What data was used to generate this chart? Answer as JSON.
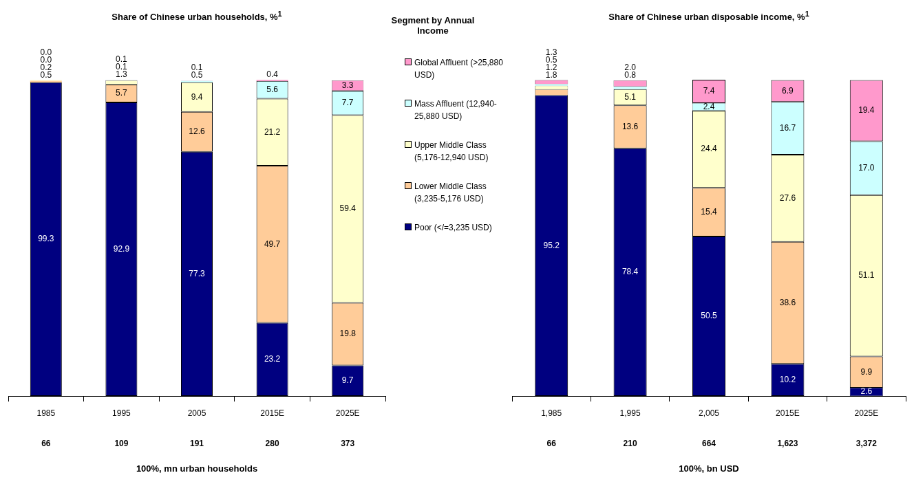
{
  "chart_data": [
    {
      "type": "bar",
      "stacked": true,
      "title": "Share of Chinese urban households, %$^{1}$",
      "xlabel": "100%, mn urban households",
      "legend_title": "Segment by Annual Income",
      "legend": "right",
      "tick_labels": "x",
      "categories": [
        "1985",
        "1995",
        "2005",
        "2015E",
        "2025E"
      ],
      "annotations": [
        "66",
        "109",
        "191",
        "280",
        "373"
      ],
      "series": [
        {
          "name": "Poor (</=3,235 USD)",
          "color": "#000080",
          "values": [
            99.3,
            92.9,
            77.3,
            23.2,
            9.7
          ],
          "value_labels": [
            "99.3",
            "92.9",
            "77.3",
            "23.2",
            "9.7"
          ]
        },
        {
          "name": "Lower Middle Class (3,235-5,176 USD)",
          "color": "#ffcc99",
          "values": [
            0.5,
            5.7,
            12.6,
            49.7,
            19.8
          ],
          "value_labels": [
            "0.5",
            "5.7",
            "12.6",
            "49.7",
            "19.8"
          ]
        },
        {
          "name": "Upper Middle Class (5,176-12,940 USD)",
          "color": "#ffffcc",
          "values": [
            0.2,
            1.3,
            9.4,
            21.2,
            59.4
          ],
          "value_labels": [
            "0.2",
            "1.3",
            "9.4",
            "21.2",
            "59.4"
          ]
        },
        {
          "name": "Mass Affluent (12,940-25,880 USD)",
          "color": "#ccffff",
          "values": [
            0.0,
            0.1,
            0.5,
            5.6,
            7.7
          ],
          "value_labels": [
            "0.0",
            "0.1",
            "0.5",
            "5.6",
            "7.7"
          ]
        },
        {
          "name": "Global Affluent (>25,880 USD)",
          "color": "#ff99cc",
          "values": [
            0.0,
            0.1,
            0.1,
            0.4,
            3.3
          ],
          "value_labels": [
            "0.0",
            "0.1",
            "0.1",
            "0.4",
            "3.3"
          ]
        }
      ]
    },
    {
      "type": "bar",
      "stacked": true,
      "title": "Share of Chinese urban disposable income, %$^{1}$",
      "xlabel": "100%, bn USD",
      "tick_labels": "x",
      "categories": [
        "1,985",
        "1,995",
        "2,005",
        "2015E",
        "2025E"
      ],
      "annotations": [
        "66",
        "210",
        "664",
        "1,623",
        "3,372"
      ],
      "series": [
        {
          "color": "#000080",
          "values": [
            95.2,
            78.4,
            50.5,
            10.2,
            2.6
          ],
          "value_labels": [
            "95.2",
            "78.4",
            "50.5",
            "10.2",
            "2.6"
          ]
        },
        {
          "color": "#ffcc99",
          "values": [
            1.8,
            13.6,
            15.4,
            38.6,
            9.9
          ],
          "value_labels": [
            "1.8",
            "13.6",
            "15.4",
            "38.6",
            "9.9"
          ]
        },
        {
          "color": "#ffffcc",
          "values": [
            1.2,
            5.1,
            24.4,
            27.6,
            51.1
          ],
          "value_labels": [
            "1.2",
            "5.1",
            "24.4",
            "27.6",
            "51.1"
          ]
        },
        {
          "color": "#ccffff",
          "values": [
            0.5,
            0.8,
            2.4,
            16.7,
            17.0
          ],
          "value_labels": [
            "0.5",
            "0.8",
            "2.4",
            "16.7",
            "17.0"
          ]
        },
        {
          "color": "#ff99cc",
          "values": [
            1.3,
            2.0,
            7.4,
            6.9,
            19.4
          ],
          "value_labels": [
            "1.3",
            "2.0",
            "7.4",
            "6.9",
            "19.4"
          ]
        }
      ]
    }
  ]
}
